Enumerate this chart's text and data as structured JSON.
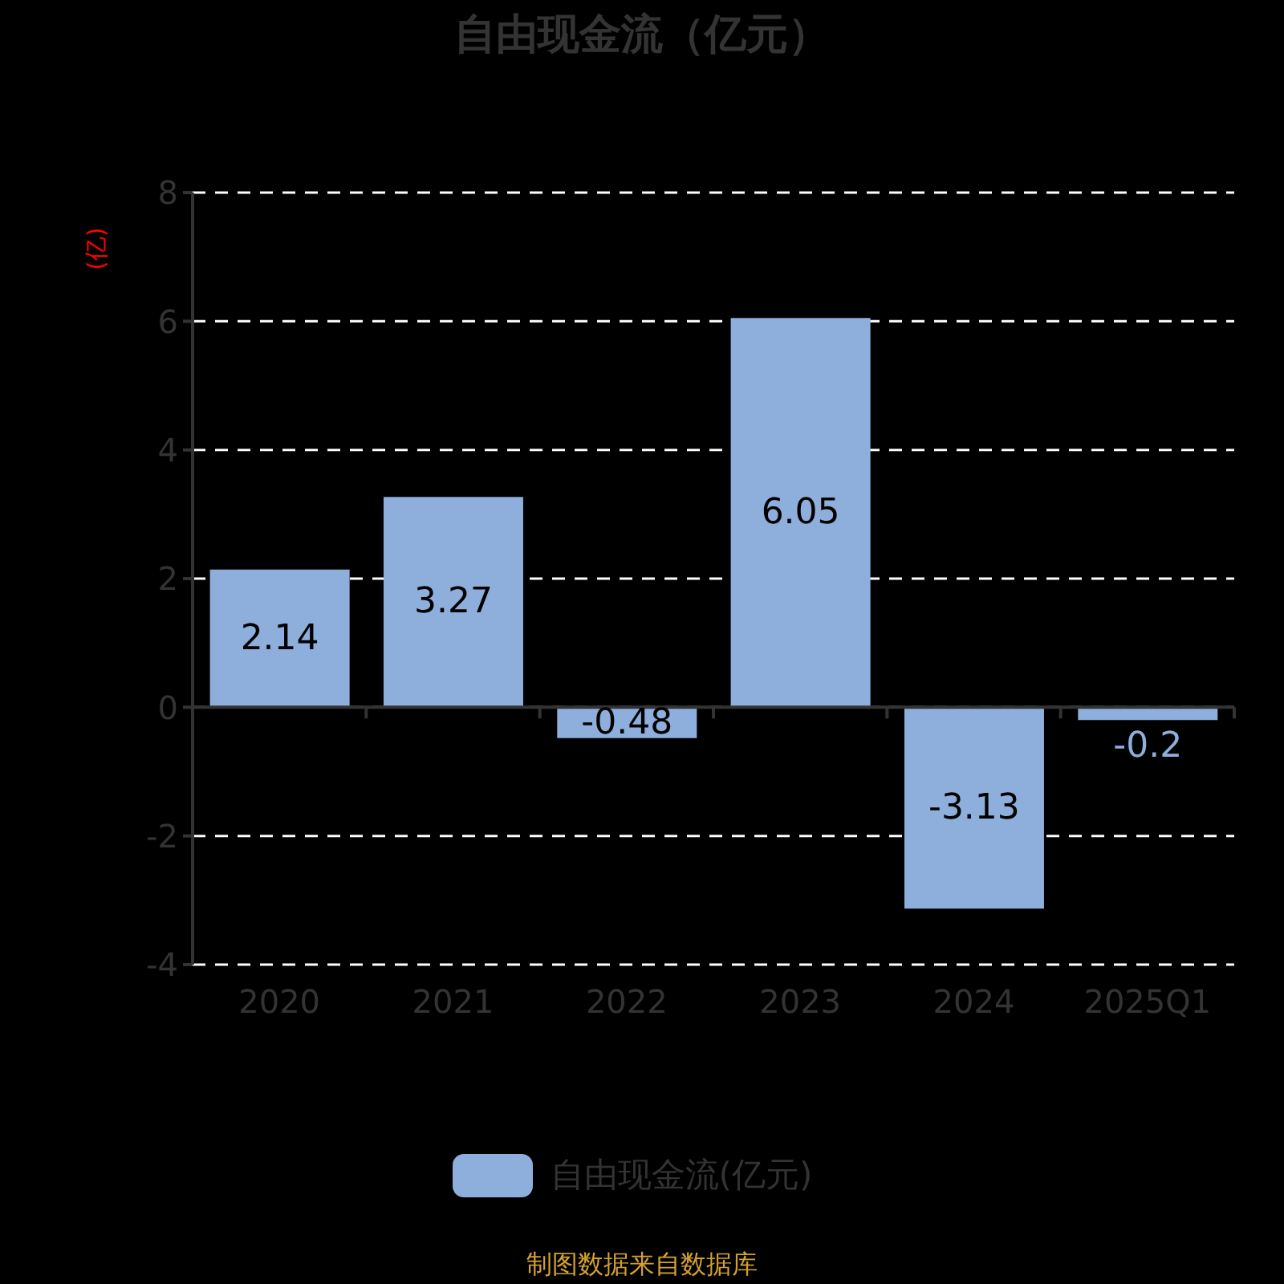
{
  "chart_data": {
    "type": "bar",
    "title": "自由现金流（亿元）",
    "ylabel": "(亿)",
    "categories": [
      "2020",
      "2021",
      "2022",
      "2023",
      "2024",
      "2025Q1"
    ],
    "series": [
      {
        "name": "自由现金流(亿元)",
        "color": "#8eaedb",
        "values": [
          2.14,
          3.27,
          -0.48,
          6.05,
          -3.13,
          -0.2
        ]
      }
    ],
    "ylim": [
      -4,
      8
    ],
    "yticks": [
      -4,
      -2,
      0,
      2,
      4,
      6,
      8
    ],
    "grid": "y",
    "legend": "bottom",
    "data_labels": true,
    "annotations": [
      "制图数据来自数据库"
    ]
  }
}
